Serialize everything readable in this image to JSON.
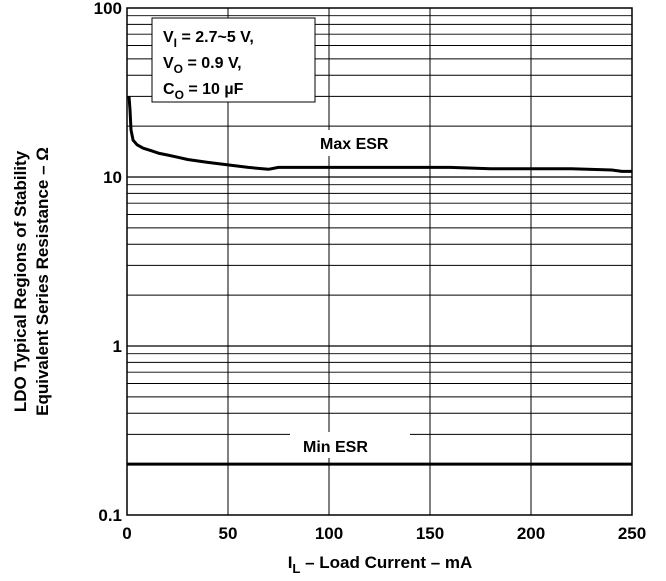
{
  "chart_data": {
    "type": "line",
    "y_scale": "log",
    "xlim": [
      0,
      250
    ],
    "ylim": [
      0.1,
      100
    ],
    "grid": true,
    "x_ticks": [
      "0",
      "50",
      "100",
      "150",
      "200",
      "250"
    ],
    "y_ticks": [
      "0.1",
      "1",
      "10",
      "100"
    ],
    "xlabel": {
      "prefix": "I",
      "sub": "L",
      "suffix": " – Load Current – mA"
    },
    "ylabel_lines": [
      "LDO Typical Regions of Stability",
      "Equivalent Series Resistance  – Ω"
    ],
    "conditions": [
      {
        "main": "V",
        "sub": "I",
        "rest": " = 2.7~5 V,"
      },
      {
        "main": "V",
        "sub": "O",
        "rest": " = 0.9 V,"
      },
      {
        "main": "C",
        "sub": "O",
        "rest": " = 10 µF"
      }
    ],
    "series": [
      {
        "name": "Max ESR",
        "x": [
          1,
          1.5,
          2,
          3,
          5,
          8,
          12,
          16,
          20,
          25,
          30,
          40,
          50,
          60,
          70,
          75,
          80,
          90,
          100,
          120,
          140,
          160,
          180,
          200,
          220,
          240,
          245,
          250
        ],
        "y": [
          30,
          25,
          19,
          16.5,
          15.5,
          14.8,
          14.3,
          13.8,
          13.5,
          13.1,
          12.7,
          12.2,
          11.8,
          11.4,
          11.1,
          11.4,
          11.4,
          11.4,
          11.4,
          11.4,
          11.4,
          11.4,
          11.2,
          11.2,
          11.2,
          11.0,
          10.8,
          10.8
        ]
      },
      {
        "name": "Min ESR",
        "x": [
          0,
          250
        ],
        "y": [
          0.2,
          0.2
        ]
      }
    ]
  }
}
